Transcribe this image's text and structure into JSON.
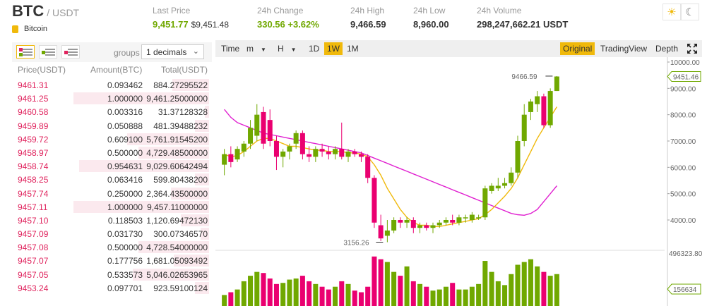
{
  "header": {
    "base": "BTC",
    "quote": "/ USDT",
    "coin_name": "Bitcoin",
    "stats": [
      {
        "label": "Last Price",
        "value": "9,451.77",
        "sub": "$9,451.48",
        "green": true
      },
      {
        "label": "24h Change",
        "value": "330.56 +3.62%",
        "sub": "",
        "green": true
      },
      {
        "label": "24h High",
        "value": "9,466.59",
        "sub": "",
        "green": false
      },
      {
        "label": "24h Low",
        "value": "8,960.00",
        "sub": "",
        "green": false
      },
      {
        "label": "24h Volume",
        "value": "298,247,662.21 USDT",
        "sub": "",
        "green": false
      }
    ],
    "theme_light_icon": "sun-icon",
    "theme_dark_icon": "moon-icon"
  },
  "orderbook": {
    "groups_label": "groups",
    "groups_value": "1 decimals",
    "columns": [
      "Price(USDT)",
      "Amount(BTC)",
      "Total(USDT)"
    ],
    "rows": [
      {
        "price": "9461.31",
        "amount": "0.093462",
        "total": "884.27295522",
        "depth": 0.26
      },
      {
        "price": "9461.25",
        "amount": "1.000000",
        "total": "9,461.25000000",
        "depth": 0.96
      },
      {
        "price": "9460.58",
        "amount": "0.003316",
        "total": "31.37128328",
        "depth": 0.03
      },
      {
        "price": "9459.89",
        "amount": "0.050888",
        "total": "481.39488232",
        "depth": 0.1
      },
      {
        "price": "9459.72",
        "amount": "0.609100",
        "total": "5,761.91545200",
        "depth": 0.58
      },
      {
        "price": "9458.97",
        "amount": "0.500000",
        "total": "4,729.48500000",
        "depth": 0.5
      },
      {
        "price": "9458.74",
        "amount": "0.954631",
        "total": "9,029.60642494",
        "depth": 0.92
      },
      {
        "price": "9458.25",
        "amount": "0.063416",
        "total": "599.80438200",
        "depth": 0.1
      },
      {
        "price": "9457.74",
        "amount": "0.250000",
        "total": "2,364.43500000",
        "depth": 0.27
      },
      {
        "price": "9457.11",
        "amount": "1.000000",
        "total": "9,457.11000000",
        "depth": 0.96
      },
      {
        "price": "9457.10",
        "amount": "0.118503",
        "total": "1,120.69472130",
        "depth": 0.2
      },
      {
        "price": "9457.09",
        "amount": "0.031730",
        "total": "300.07346570",
        "depth": 0.06
      },
      {
        "price": "9457.08",
        "amount": "0.500000",
        "total": "4,728.54000000",
        "depth": 0.5
      },
      {
        "price": "9457.07",
        "amount": "0.177756",
        "total": "1,681.05093492",
        "depth": 0.25
      },
      {
        "price": "9457.05",
        "amount": "0.533573",
        "total": "5,046.02653965",
        "depth": 0.54
      },
      {
        "price": "9453.24",
        "amount": "0.097701",
        "total": "923.59100124",
        "depth": 0.1
      }
    ]
  },
  "chart_toolbar": {
    "time_label": "Time",
    "intervals": [
      "m",
      "H",
      "1D",
      "1W",
      "1M"
    ],
    "active_interval": "1W",
    "views": [
      "Original",
      "TradingView",
      "Depth"
    ],
    "active_view": "Original",
    "fullscreen_icon": "fullscreen-icon"
  },
  "chart_data": {
    "type": "candlestick",
    "price_axis_ticks": [
      "10000.00",
      "9000.00",
      "8000.00",
      "7000.00",
      "6000.00",
      "5000.00",
      "4000.00"
    ],
    "current_price_tag": "9451.46",
    "high_marker": "9466.59",
    "low_marker": "3156.26",
    "volume_axis_max": "496323.80",
    "volume_tag": "156634",
    "ohlc": [
      [
        6100,
        6500,
        6700,
        5700
      ],
      [
        6500,
        6200,
        6800,
        6000
      ],
      [
        6300,
        6700,
        6800,
        6200
      ],
      [
        6600,
        6900,
        7000,
        6400
      ],
      [
        6900,
        7500,
        7800,
        6700
      ],
      [
        7200,
        8000,
        8400,
        7000
      ],
      [
        8100,
        6900,
        8300,
        6700
      ],
      [
        7800,
        7000,
        8200,
        6800
      ],
      [
        7000,
        6400,
        7200,
        5900
      ],
      [
        6400,
        6600,
        6700,
        6000
      ],
      [
        6600,
        6800,
        6900,
        6300
      ],
      [
        6900,
        7300,
        7400,
        6700
      ],
      [
        7300,
        6500,
        7400,
        6300
      ],
      [
        6500,
        6400,
        6800,
        6200
      ],
      [
        6400,
        6700,
        6800,
        6200
      ],
      [
        6700,
        6600,
        6900,
        6400
      ],
      [
        6600,
        6500,
        6800,
        6300
      ],
      [
        6500,
        6700,
        6800,
        6300
      ],
      [
        6700,
        6400,
        7700,
        6300
      ],
      [
        6400,
        6600,
        6700,
        6200
      ],
      [
        6600,
        6500,
        6700,
        6400
      ],
      [
        6500,
        6400,
        6600,
        6200
      ],
      [
        6400,
        5600,
        6500,
        5400
      ],
      [
        5600,
        3900,
        5700,
        3700
      ],
      [
        3800,
        3300,
        4200,
        3200
      ],
      [
        3400,
        3600,
        4000,
        3156
      ],
      [
        3600,
        4000,
        4100,
        3500
      ],
      [
        4000,
        3900,
        4100,
        3700
      ],
      [
        3900,
        4000,
        4100,
        3700
      ],
      [
        4000,
        3700,
        4100,
        3500
      ],
      [
        3700,
        3800,
        3900,
        3500
      ],
      [
        3800,
        3700,
        3900,
        3600
      ],
      [
        3700,
        3800,
        3900,
        3500
      ],
      [
        3800,
        3900,
        4000,
        3700
      ],
      [
        3900,
        4000,
        4100,
        3800
      ],
      [
        4000,
        3900,
        4200,
        3800
      ],
      [
        3900,
        4100,
        4200,
        3800
      ],
      [
        4100,
        4100,
        4200,
        3900
      ],
      [
        4000,
        4200,
        4300,
        3900
      ],
      [
        4100,
        4100,
        4200,
        4000
      ],
      [
        4100,
        5200,
        5300,
        4000
      ],
      [
        5100,
        5300,
        5400,
        5000
      ],
      [
        5200,
        5300,
        5600,
        5100
      ],
      [
        5300,
        5400,
        5600,
        5200
      ],
      [
        5400,
        5800,
        6000,
        5300
      ],
      [
        5800,
        7000,
        7200,
        5600
      ],
      [
        7000,
        8000,
        8400,
        6800
      ],
      [
        8100,
        8500,
        8600,
        7800
      ],
      [
        8400,
        8700,
        8900,
        8100
      ],
      [
        8700,
        7600,
        8800,
        7500
      ],
      [
        7600,
        8900,
        9000,
        7500
      ],
      [
        8900,
        9451,
        9466,
        8900
      ]
    ],
    "ma_fast": [
      6500,
      6400,
      6450,
      6600,
      6800,
      7000,
      7100,
      7100,
      7000,
      6900,
      6800,
      6800,
      6750,
      6700,
      6650,
      6650,
      6600,
      6600,
      6600,
      6550,
      6550,
      6500,
      6400,
      6100,
      5700,
      5200,
      4800,
      4400,
      4100,
      3900,
      3800,
      3800,
      3750,
      3750,
      3800,
      3850,
      3900,
      3950,
      4000,
      4050,
      4200,
      4400,
      4650,
      4900,
      5200,
      5600,
      6100,
      6600,
      7100,
      7500,
      7900,
      8300
    ],
    "ma_slow": [
      8200,
      7900,
      7700,
      7600,
      7500,
      7400,
      7300,
      7250,
      7200,
      7150,
      7100,
      7050,
      7000,
      6950,
      6900,
      6850,
      6800,
      6750,
      6700,
      6650,
      6600,
      6550,
      6450,
      6350,
      6250,
      6150,
      6050,
      5950,
      5850,
      5750,
      5650,
      5550,
      5450,
      5350,
      5250,
      5150,
      5050,
      4950,
      4850,
      4750,
      4650,
      4550,
      4450,
      4350,
      4250,
      4200,
      4180,
      4250,
      4400,
      4700,
      5000,
      5300
    ],
    "volumes": [
      0.2,
      0.25,
      0.3,
      0.45,
      0.55,
      0.62,
      0.6,
      0.5,
      0.4,
      0.42,
      0.48,
      0.5,
      0.55,
      0.45,
      0.4,
      0.35,
      0.3,
      0.35,
      0.45,
      0.4,
      0.28,
      0.25,
      0.35,
      0.9,
      0.85,
      0.8,
      0.62,
      0.55,
      0.72,
      0.45,
      0.4,
      0.35,
      0.28,
      0.3,
      0.35,
      0.42,
      0.3,
      0.3,
      0.35,
      0.4,
      0.82,
      0.62,
      0.45,
      0.38,
      0.58,
      0.75,
      0.8,
      0.85,
      0.72,
      0.62,
      0.55,
      0.58
    ],
    "colors": {
      "up": "#70a800",
      "down": "#ea0070",
      "ma_fast": "#f0b90b",
      "ma_slow": "#e020d0"
    }
  }
}
